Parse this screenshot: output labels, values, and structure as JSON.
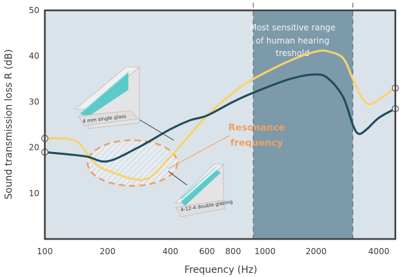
{
  "chart_data": {
    "type": "line",
    "title": "",
    "xlabel": "Frequency (Hz)",
    "ylabel": "Sound transmission loss R (dB)",
    "x_scale": "log",
    "xlim": [
      100,
      4800
    ],
    "ylim": [
      0,
      50
    ],
    "x_ticks": [
      {
        "value": 100,
        "label": "100"
      },
      {
        "value": 200,
        "label": "200"
      },
      {
        "value": 400,
        "label": "400"
      },
      {
        "value": 600,
        "label": "600"
      },
      {
        "value": 800,
        "label": "800"
      },
      {
        "value": 1000,
        "label": "1000"
      },
      {
        "value": 2000,
        "label": "2000"
      },
      {
        "value": 4000,
        "label": "4000"
      }
    ],
    "y_ticks": [
      {
        "value": 10,
        "label": "10"
      },
      {
        "value": 20,
        "label": "20"
      },
      {
        "value": 30,
        "label": "30"
      },
      {
        "value": 40,
        "label": "40"
      },
      {
        "value": 50,
        "label": "50"
      }
    ],
    "grid": false,
    "series": [
      {
        "name": "4 mm single glass",
        "color": "#1e4d5c",
        "x": [
          100,
          130,
          160,
          200,
          280,
          400,
          500,
          600,
          800,
          1000,
          1500,
          2000,
          2300,
          2700,
          3000,
          3200,
          3500,
          4000,
          4800
        ],
        "y": [
          19,
          18.5,
          18,
          17,
          20,
          24,
          26,
          27,
          30,
          32,
          35,
          36,
          35,
          31,
          25,
          23,
          24,
          26.5,
          28.5
        ]
      },
      {
        "name": "4-12-4 double glazing",
        "color": "#f7d36a",
        "x": [
          100,
          140,
          170,
          200,
          300,
          400,
          500,
          600,
          800,
          1000,
          1500,
          2000,
          2300,
          2700,
          3000,
          3300,
          3600,
          4000,
          4800
        ],
        "y": [
          22,
          21.5,
          17,
          15,
          13,
          18,
          23,
          27,
          32,
          35,
          39,
          41,
          41,
          39.5,
          35,
          31,
          29.5,
          30.5,
          33
        ]
      }
    ],
    "shaded_band": {
      "x_from": 1000,
      "x_to": 3000,
      "label": "Most sensitive range of human hearing treshold"
    },
    "annotation": {
      "text": "Resonance frequency",
      "x": 250,
      "y": 15
    },
    "legend": "none"
  },
  "annotations": {
    "band_line1": "Most sensitive range",
    "band_line2": "of human hearing",
    "band_line3": "treshold",
    "resonance_line1": "Resonance",
    "resonance_line2": "frequency",
    "glass_single_label": "4 mm single glass",
    "glass_double_label": "4-12-4 double glazing"
  },
  "colors": {
    "plot_background": "#dbe3ea",
    "band_fill": "#7d9aab",
    "single_line": "#1e4d5c",
    "double_line": "#f7d36a",
    "resonance_ellipse": "#f0a060",
    "glass_tint": "#45c6c6"
  }
}
